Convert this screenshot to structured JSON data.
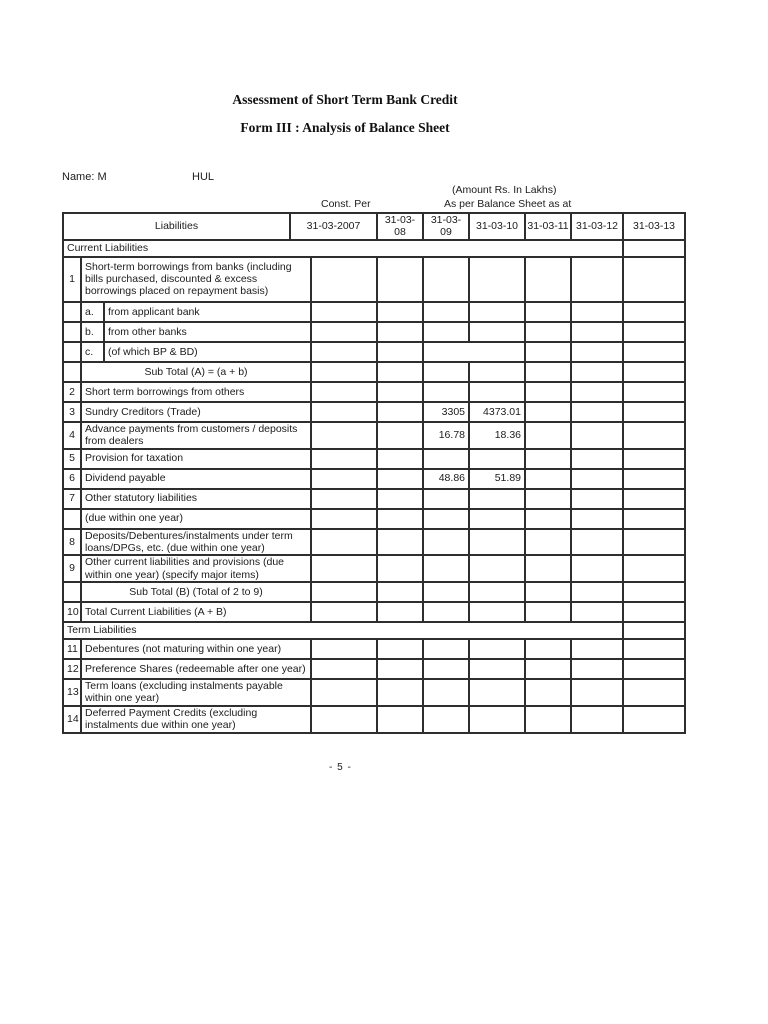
{
  "page": {
    "title1": "Assessment of Short Term Bank Credit",
    "title2": "Form III : Analysis of Balance Sheet",
    "name_label": "Name: M",
    "name_value": "HUL",
    "amount_note": "(Amount Rs. In Lakhs)",
    "const_per_label": "Const. Per",
    "as_per_label": "As per Balance Sheet as at",
    "page_number": "- 5 -"
  },
  "table": {
    "liabilities_header": "Liabilities",
    "date_headers": [
      "31-03-2007",
      "31-03-08",
      "31-03-09",
      "31-03-10",
      "31-03-11",
      "31-03-12",
      "31-03-13"
    ],
    "rows": [
      {
        "type": "section",
        "label": "Current Liabilities"
      },
      {
        "type": "item",
        "num": "1",
        "lines": 3,
        "label": "Short-term borrowings from banks (including bills purchased, discounted & excess borrowings placed on repayment basis)"
      },
      {
        "type": "sub",
        "letter": "a.",
        "label": "from applicant bank"
      },
      {
        "type": "sub",
        "letter": "b.",
        "label": "from other banks"
      },
      {
        "type": "sub",
        "letter": "c.",
        "label": "(of which BP & BD)",
        "merge": "0910"
      },
      {
        "type": "total",
        "label": "Sub Total (A) = (a + b)"
      },
      {
        "type": "item",
        "num": "2",
        "label": "Short term borrowings from others"
      },
      {
        "type": "item",
        "num": "3",
        "label": "Sundry Creditors (Trade)",
        "values": [
          "",
          "",
          "3305",
          "4373.01",
          "",
          "",
          ""
        ]
      },
      {
        "type": "item",
        "num": "4",
        "lines": 2,
        "label": "Advance payments from customers / deposits from dealers",
        "values": [
          "",
          "",
          "16.78",
          "18.36",
          "",
          "",
          ""
        ]
      },
      {
        "type": "item",
        "num": "5",
        "label": "Provision for taxation"
      },
      {
        "type": "item",
        "num": "6",
        "label": "Dividend payable",
        "values": [
          "",
          "",
          "48.86",
          "51.89",
          "",
          "",
          ""
        ]
      },
      {
        "type": "item",
        "num": "7",
        "label": "Other statutory liabilities"
      },
      {
        "type": "cont",
        "label": "(due within one year)"
      },
      {
        "type": "item",
        "num": "8",
        "lines": 2,
        "label": "Deposits/Debentures/instalments under term loans/DPGs, etc. (due within one year)"
      },
      {
        "type": "item",
        "num": "9",
        "lines": 2,
        "label": "Other current liabilities and provisions (due within one year) (specify major items)"
      },
      {
        "type": "total",
        "label": "Sub Total (B) (Total of 2 to 9)"
      },
      {
        "type": "item",
        "num": "10",
        "label": "Total Current Liabilities (A + B)"
      },
      {
        "type": "section",
        "label": "Term Liabilities"
      },
      {
        "type": "item",
        "num": "11",
        "label": "Debentures (not maturing within one year)"
      },
      {
        "type": "item",
        "num": "12",
        "label": "Preference Shares (redeemable after one year)"
      },
      {
        "type": "item",
        "num": "13",
        "lines": 2,
        "label": "Term loans (excluding instalments payable within one year)"
      },
      {
        "type": "item",
        "num": "14",
        "lines": 2,
        "label": "Deferred Payment Credits (excluding instalments due within one year)"
      }
    ]
  }
}
